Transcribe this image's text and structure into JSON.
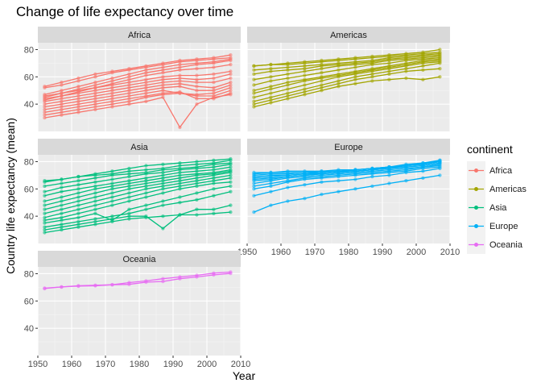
{
  "chart_data": {
    "type": "line",
    "title": "Change of life expectancy over time",
    "xlabel": "Year",
    "ylabel": "Country life expectancy (mean)",
    "legend_title": "continent",
    "legend_position": "right",
    "xlim": [
      1950,
      2010
    ],
    "ylim": [
      20,
      85
    ],
    "x_ticks": [
      1950,
      1960,
      1970,
      1980,
      1990,
      2000,
      2010
    ],
    "y_ticks": [
      40,
      60,
      80
    ],
    "grid": true,
    "years": [
      1952,
      1957,
      1962,
      1967,
      1972,
      1977,
      1982,
      1987,
      1992,
      1997,
      2002,
      2007
    ],
    "facets": [
      {
        "name": "Africa",
        "color": "#F8766D",
        "series": [
          {
            "values": [
              30,
              32,
              34,
              36,
              38,
              40,
              42,
              45,
              23,
              40,
              45,
              47
            ]
          },
          {
            "values": [
              32,
              34,
              36,
              38,
              40,
              42,
              45,
              47,
              48,
              46,
              46,
              50
            ]
          },
          {
            "values": [
              34,
              36,
              38,
              40,
              42,
              44,
              46,
              48,
              49,
              44,
              44,
              48
            ]
          },
          {
            "values": [
              36,
              38,
              40,
              42,
              44,
              46,
              48,
              50,
              48,
              47,
              48,
              52
            ]
          },
          {
            "values": [
              38,
              40,
              42,
              44,
              46,
              48,
              50,
              52,
              53,
              50,
              50,
              54
            ]
          },
          {
            "values": [
              40,
              42,
              44,
              46,
              48,
              50,
              52,
              54,
              55,
              53,
              52,
              56
            ]
          },
          {
            "values": [
              42,
              44,
              46,
              48,
              50,
              52,
              54,
              56,
              57,
              56,
              56,
              59
            ]
          },
          {
            "values": [
              44,
              46,
              48,
              50,
              52,
              54,
              56,
              58,
              59,
              58,
              59,
              62
            ]
          },
          {
            "values": [
              46,
              48,
              50,
              52,
              54,
              56,
              58,
              60,
              61,
              61,
              62,
              64
            ]
          },
          {
            "values": [
              43,
              46,
              49,
              52,
              55,
              58,
              61,
              63,
              65,
              66,
              67,
              69
            ]
          },
          {
            "values": [
              45,
              48,
              51,
              54,
              57,
              60,
              63,
              65,
              67,
              69,
              70,
              72
            ]
          },
          {
            "values": [
              47,
              50,
              53,
              56,
              59,
              62,
              65,
              67,
              69,
              70,
              71,
              73
            ]
          },
          {
            "values": [
              52,
              54,
              57,
              60,
              63,
              65,
              67,
              69,
              71,
              72,
              73,
              74
            ]
          },
          {
            "values": [
              53,
              56,
              59,
              62,
              64,
              66,
              68,
              70,
              72,
              73,
              74,
              76
            ]
          }
        ]
      },
      {
        "name": "Americas",
        "color": "#A3A500",
        "series": [
          {
            "values": [
              38,
              41,
              44,
              47,
              50,
              53,
              55,
              57,
              58,
              59,
              58,
              60
            ]
          },
          {
            "values": [
              40,
              43,
              46,
              49,
              52,
              55,
              58,
              60,
              62,
              64,
              65,
              66
            ]
          },
          {
            "values": [
              42,
              45,
              48,
              51,
              54,
              57,
              60,
              62,
              64,
              66,
              68,
              70
            ]
          },
          {
            "values": [
              45,
              48,
              51,
              54,
              57,
              60,
              62,
              64,
              66,
              68,
              70,
              71
            ]
          },
          {
            "values": [
              48,
              51,
              54,
              57,
              59,
              61,
              63,
              65,
              67,
              69,
              71,
              72
            ]
          },
          {
            "values": [
              50,
              53,
              56,
              58,
              60,
              62,
              64,
              66,
              68,
              70,
              72,
              73
            ]
          },
          {
            "values": [
              54,
              57,
              59,
              61,
              63,
              65,
              67,
              69,
              70,
              72,
              73,
              74
            ]
          },
          {
            "values": [
              58,
              60,
              62,
              64,
              66,
              68,
              69,
              70,
              72,
              73,
              74,
              75
            ]
          },
          {
            "values": [
              62,
              64,
              65,
              66,
              68,
              69,
              70,
              71,
              73,
              74,
              75,
              76
            ]
          },
          {
            "values": [
              65,
              66,
              67,
              68,
              69,
              70,
              71,
              72,
              74,
              75,
              76,
              77
            ]
          },
          {
            "values": [
              68,
              69,
              69,
              70,
              71,
              72,
              73,
              74,
              75,
              76,
              77,
              78
            ]
          },
          {
            "values": [
              68,
              69,
              70,
              71,
              72,
              73,
              74,
              75,
              76,
              77,
              78,
              80
            ]
          }
        ]
      },
      {
        "name": "Asia",
        "color": "#00BF7D",
        "series": [
          {
            "values": [
              28,
              30,
              32,
              34,
              36,
              38,
              39,
              40,
              41,
              41,
              42,
              43
            ]
          },
          {
            "values": [
              30,
              32,
              34,
              36,
              38,
              40,
              40,
              31,
              41,
              45,
              45,
              48
            ]
          },
          {
            "values": [
              32,
              34,
              36,
              38,
              40,
              42,
              45,
              48,
              50,
              52,
              55,
              58
            ]
          },
          {
            "values": [
              35,
              37,
              39,
              42,
              37,
              45,
              48,
              51,
              54,
              57,
              60,
              62
            ]
          },
          {
            "values": [
              37,
              39,
              42,
              45,
              48,
              51,
              54,
              57,
              60,
              62,
              64,
              65
            ]
          },
          {
            "values": [
              39,
              42,
              45,
              48,
              51,
              54,
              57,
              60,
              62,
              64,
              66,
              68
            ]
          },
          {
            "values": [
              42,
              45,
              48,
              51,
              54,
              57,
              60,
              62,
              64,
              66,
              68,
              70
            ]
          },
          {
            "values": [
              45,
              48,
              51,
              54,
              57,
              60,
              62,
              64,
              66,
              68,
              70,
              72
            ]
          },
          {
            "values": [
              48,
              51,
              54,
              57,
              60,
              62,
              64,
              66,
              68,
              70,
              71,
              73
            ]
          },
          {
            "values": [
              51,
              54,
              57,
              60,
              62,
              64,
              66,
              68,
              70,
              71,
              72,
              74
            ]
          },
          {
            "values": [
              55,
              58,
              60,
              62,
              64,
              66,
              68,
              70,
              72,
              73,
              74,
              76
            ]
          },
          {
            "values": [
              58,
              61,
              63,
              65,
              67,
              69,
              71,
              72,
              74,
              75,
              76,
              78
            ]
          },
          {
            "values": [
              62,
              64,
              66,
              68,
              70,
              71,
              72,
              74,
              75,
              76,
              78,
              79
            ]
          },
          {
            "values": [
              66,
              67,
              69,
              70,
              71,
              73,
              74,
              75,
              77,
              78,
              79,
              81
            ]
          },
          {
            "values": [
              65,
              67,
              69,
              71,
              73,
              75,
              77,
              78,
              79,
              80,
              81,
              82
            ]
          }
        ]
      },
      {
        "name": "Europe",
        "color": "#00B0F6",
        "series": [
          {
            "values": [
              43,
              48,
              51,
              53,
              56,
              58,
              60,
              62,
              64,
              66,
              68,
              70
            ]
          },
          {
            "values": [
              55,
              58,
              61,
              63,
              65,
              66,
              67,
              69,
              70,
              72,
              73,
              75
            ]
          },
          {
            "values": [
              60,
              62,
              65,
              67,
              68,
              69,
              70,
              71,
              72,
              73,
              75,
              76
            ]
          },
          {
            "values": [
              62,
              64,
              66,
              68,
              69,
              70,
              71,
              72,
              73,
              74,
              76,
              77
            ]
          },
          {
            "values": [
              64,
              66,
              68,
              69,
              70,
              71,
              72,
              73,
              74,
              75,
              76,
              78
            ]
          },
          {
            "values": [
              66,
              67,
              69,
              70,
              71,
              72,
              73,
              74,
              75,
              76,
              77,
              79
            ]
          },
          {
            "values": [
              67,
              68,
              69,
              70,
              71,
              72,
              73,
              74,
              76,
              77,
              78,
              80
            ]
          },
          {
            "values": [
              68,
              69,
              70,
              71,
              72,
              73,
              74,
              75,
              76,
              77,
              78,
              80
            ]
          },
          {
            "values": [
              69,
              70,
              70,
              71,
              71,
              72,
              73,
              74,
              75,
              76,
              77,
              79
            ]
          },
          {
            "values": [
              70,
              71,
              71,
              72,
              72,
              73,
              73,
              74,
              75,
              77,
              78,
              81
            ]
          },
          {
            "values": [
              71,
              72,
              72,
              72,
              73,
              73,
              74,
              75,
              76,
              77,
              79,
              81
            ]
          },
          {
            "values": [
              72,
              72,
              73,
              73,
              73,
              74,
              74,
              75,
              76,
              78,
              79,
              80
            ]
          }
        ]
      },
      {
        "name": "Oceania",
        "color": "#E76BF3",
        "series": [
          {
            "values": [
              69.1,
              70.3,
              70.9,
              71.1,
              71.9,
              73.5,
              74.7,
              76.3,
              77.6,
              78.8,
              80.4,
              81.2
            ]
          },
          {
            "values": [
              69.4,
              70.3,
              71.2,
              71.5,
              71.9,
              72.2,
              73.8,
              74.3,
              76.3,
              77.6,
              79.1,
              80.2
            ]
          }
        ]
      }
    ]
  }
}
